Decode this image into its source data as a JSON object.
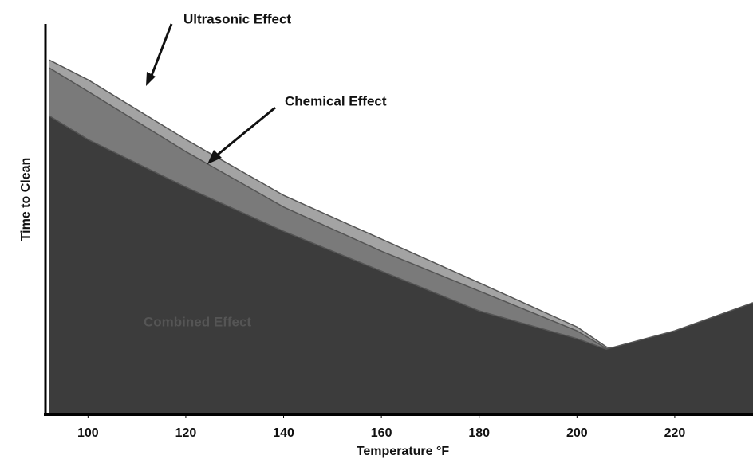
{
  "chart_data": {
    "type": "area",
    "x_label": "Temperature °F",
    "y_label": "Time to Clean",
    "annotations": [
      "Ultrasonic Effect",
      "Chemical Effect",
      "Combined Effect"
    ],
    "x": [
      92,
      100,
      120,
      140,
      160,
      180,
      200,
      206,
      220,
      236
    ],
    "series": [
      {
        "name": "Ultrasonic Effect",
        "color": "#a3a3a3",
        "values": [
          90.8,
          85.7,
          70.4,
          56.1,
          44.9,
          33.7,
          22.4,
          17.3,
          11.2,
          7.8
        ]
      },
      {
        "name": "Chemical Effect",
        "color": "#7a7a7a",
        "values": [
          88.8,
          82.7,
          67.3,
          53.1,
          41.8,
          31.6,
          21.4,
          16.9,
          10.6,
          7.1
        ]
      },
      {
        "name": "Combined Effect",
        "color": "#3c3c3c",
        "values": [
          76.5,
          70.4,
          58.2,
          46.9,
          36.7,
          26.5,
          19.4,
          16.7,
          21.4,
          28.6
        ]
      }
    ],
    "xlim": [
      91.3,
      236
    ],
    "ylim": [
      0,
      100
    ],
    "xticks": [
      100,
      120,
      140,
      160,
      180,
      200,
      220
    ]
  }
}
